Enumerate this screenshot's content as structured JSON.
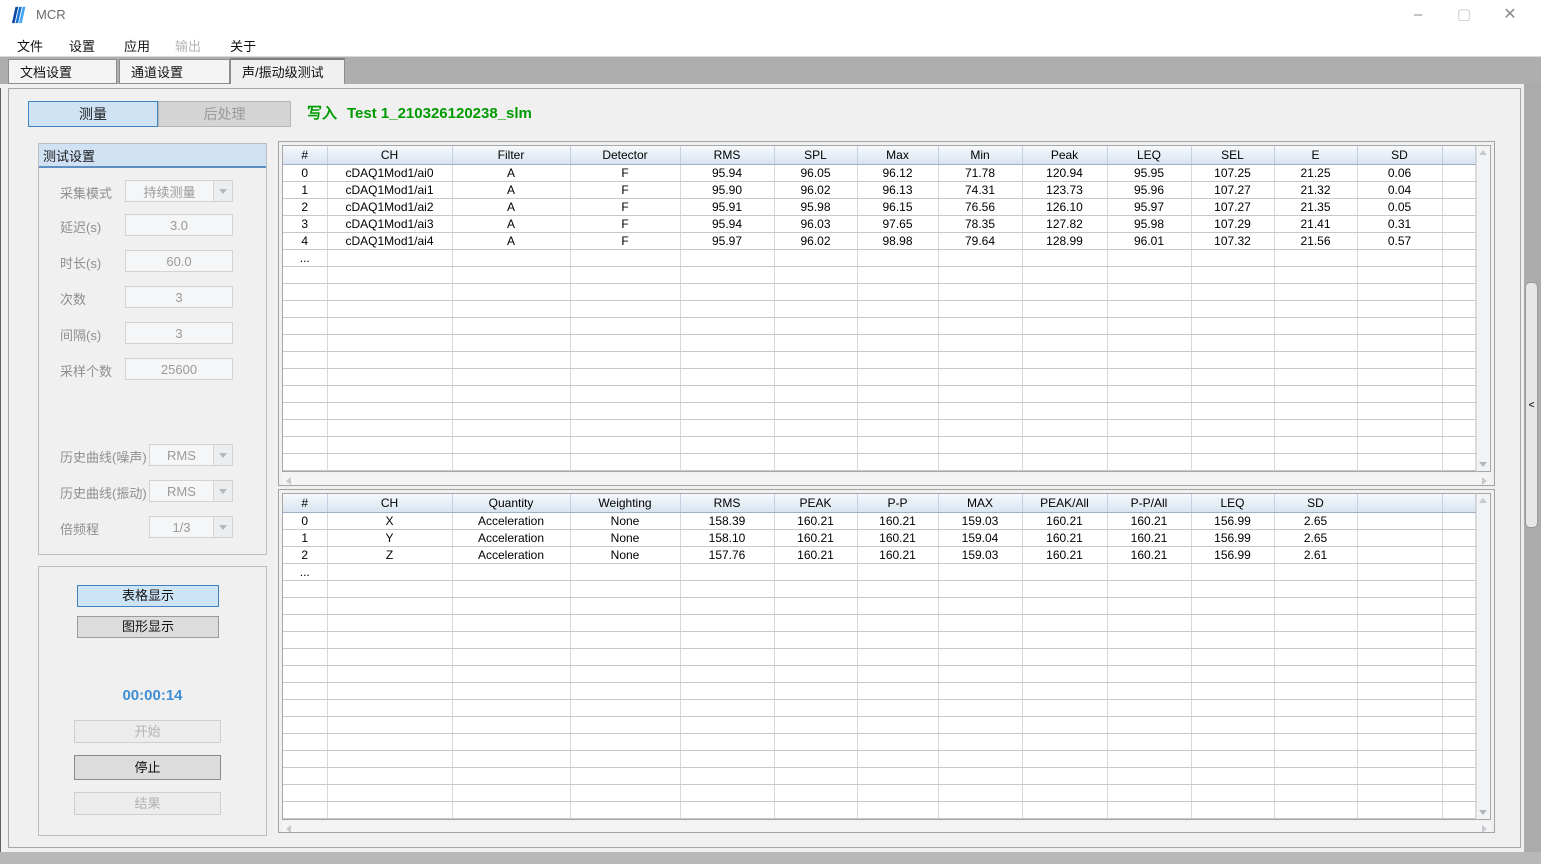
{
  "window": {
    "title": "MCR",
    "controls": {
      "minimize": "–",
      "maximize": "▢",
      "close": "✕"
    }
  },
  "menu": {
    "items": [
      {
        "label": "文件",
        "enabled": true
      },
      {
        "label": "设置",
        "enabled": true
      },
      {
        "label": "应用",
        "enabled": true
      },
      {
        "label": "输出",
        "enabled": false
      },
      {
        "label": "关于",
        "enabled": true
      }
    ]
  },
  "tabs": [
    {
      "label": "文档设置",
      "active": false
    },
    {
      "label": "通道设置",
      "active": false
    },
    {
      "label": "声/振动级测试",
      "active": true
    }
  ],
  "toolbar": {
    "measure_label": "测量",
    "postprocess_label": "后处理",
    "write_label": "写入",
    "file_name": "Test 1_210326120238_slm"
  },
  "settings_panel": {
    "title": "测试设置",
    "fields": [
      {
        "label": "采集模式",
        "value": "持续测量",
        "control": "dropdown"
      },
      {
        "label": "延迟(s)",
        "value": "3.0",
        "control": "input"
      },
      {
        "label": "时长(s)",
        "value": "60.0",
        "control": "input"
      },
      {
        "label": "次数",
        "value": "3",
        "control": "input"
      },
      {
        "label": "间隔(s)",
        "value": "3",
        "control": "input"
      },
      {
        "label": "采样个数",
        "value": "25600",
        "control": "input"
      },
      {
        "label": "历史曲线(噪声)",
        "value": "RMS",
        "control": "dropdown"
      },
      {
        "label": "历史曲线(振动)",
        "value": "RMS",
        "control": "dropdown"
      },
      {
        "label": "倍频程",
        "value": "1/3",
        "control": "dropdown"
      }
    ]
  },
  "control_panel": {
    "table_display_label": "表格显示",
    "graph_display_label": "图形显示",
    "timer": "00:00:14",
    "start_label": "开始",
    "stop_label": "停止",
    "result_label": "结果"
  },
  "sound_table": {
    "headers": [
      "#",
      "CH",
      "Filter",
      "Detector",
      "RMS",
      "SPL",
      "Max",
      "Min",
      "Peak",
      "LEQ",
      "SEL",
      "E",
      "SD"
    ],
    "rows": [
      [
        "0",
        "cDAQ1Mod1/ai0",
        "A",
        "F",
        "95.94",
        "96.05",
        "96.12",
        "71.78",
        "120.94",
        "95.95",
        "107.25",
        "21.25",
        "0.06"
      ],
      [
        "1",
        "cDAQ1Mod1/ai1",
        "A",
        "F",
        "95.90",
        "96.02",
        "96.13",
        "74.31",
        "123.73",
        "95.96",
        "107.27",
        "21.32",
        "0.04"
      ],
      [
        "2",
        "cDAQ1Mod1/ai2",
        "A",
        "F",
        "95.91",
        "95.98",
        "96.15",
        "76.56",
        "126.10",
        "95.97",
        "107.27",
        "21.35",
        "0.05"
      ],
      [
        "3",
        "cDAQ1Mod1/ai3",
        "A",
        "F",
        "95.94",
        "96.03",
        "97.65",
        "78.35",
        "127.82",
        "95.98",
        "107.29",
        "21.41",
        "0.31"
      ],
      [
        "4",
        "cDAQ1Mod1/ai4",
        "A",
        "F",
        "95.97",
        "96.02",
        "98.98",
        "79.64",
        "128.99",
        "96.01",
        "107.32",
        "21.56",
        "0.57"
      ],
      [
        "...",
        "",
        "",
        "",
        "",
        "",
        "",
        "",
        "",
        "",
        "",
        "",
        ""
      ]
    ]
  },
  "vibration_table": {
    "headers": [
      "#",
      "CH",
      "Quantity",
      "Weighting",
      "RMS",
      "PEAK",
      "P-P",
      "MAX",
      "PEAK/All",
      "P-P/All",
      "LEQ",
      "SD"
    ],
    "rows": [
      [
        "0",
        "X",
        "Acceleration",
        "None",
        "158.39",
        "160.21",
        "160.21",
        "159.03",
        "160.21",
        "160.21",
        "156.99",
        "2.65"
      ],
      [
        "1",
        "Y",
        "Acceleration",
        "None",
        "158.10",
        "160.21",
        "160.21",
        "159.04",
        "160.21",
        "160.21",
        "156.99",
        "2.65"
      ],
      [
        "2",
        "Z",
        "Acceleration",
        "None",
        "157.76",
        "160.21",
        "160.21",
        "159.03",
        "160.21",
        "160.21",
        "156.99",
        "2.61"
      ],
      [
        "...",
        "",
        "",
        "",
        "",
        "",
        "",
        "",
        "",
        "",
        "",
        ""
      ]
    ]
  },
  "colors": {
    "accent_green": "#009b00",
    "timer_blue": "#3f8fd2",
    "header_blue": "#d9e4f1",
    "active_button_blue": "#cfe3f5"
  }
}
